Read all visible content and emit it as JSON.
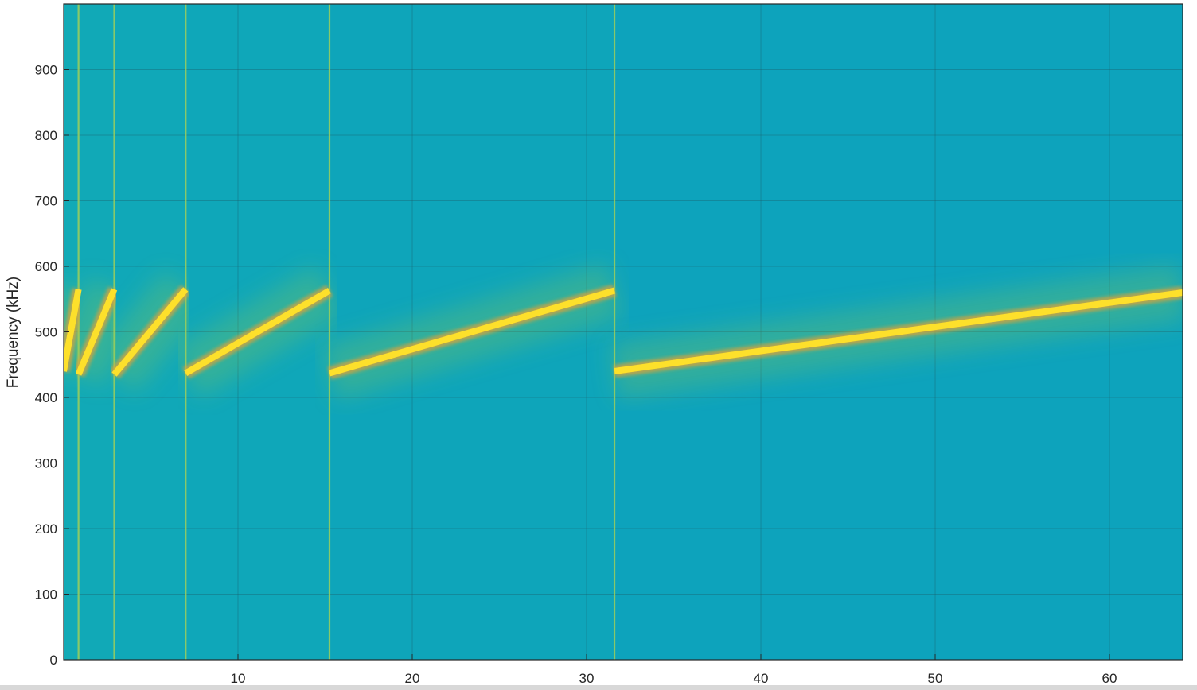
{
  "chart_data": {
    "type": "heatmap",
    "title": "",
    "xlabel": "",
    "ylabel": "Frequency (kHz)",
    "xlim": [
      0,
      64.2
    ],
    "ylim": [
      0,
      1000
    ],
    "xticks": [
      10,
      20,
      30,
      40,
      50,
      60
    ],
    "yticks": [
      0,
      100,
      200,
      300,
      400,
      500,
      600,
      700,
      800,
      900
    ],
    "grid": true,
    "colormap": {
      "background": "#0fa8b8",
      "ridge": "#fde02b",
      "ridge_edge": "#c9c43a"
    },
    "segment_boundaries_x": [
      0.85,
      2.9,
      7.0,
      15.25,
      31.6
    ],
    "chirp_segments": [
      {
        "x_start": 0.0,
        "x_end": 0.85,
        "f_start": 440,
        "f_end": 565
      },
      {
        "x_start": 0.85,
        "x_end": 2.9,
        "f_start": 435,
        "f_end": 565
      },
      {
        "x_start": 2.9,
        "x_end": 7.0,
        "f_start": 435,
        "f_end": 565
      },
      {
        "x_start": 7.0,
        "x_end": 15.25,
        "f_start": 437,
        "f_end": 563
      },
      {
        "x_start": 15.25,
        "x_end": 31.6,
        "f_start": 437,
        "f_end": 563
      },
      {
        "x_start": 31.6,
        "x_end": 64.2,
        "f_start": 440,
        "f_end": 560
      }
    ]
  }
}
